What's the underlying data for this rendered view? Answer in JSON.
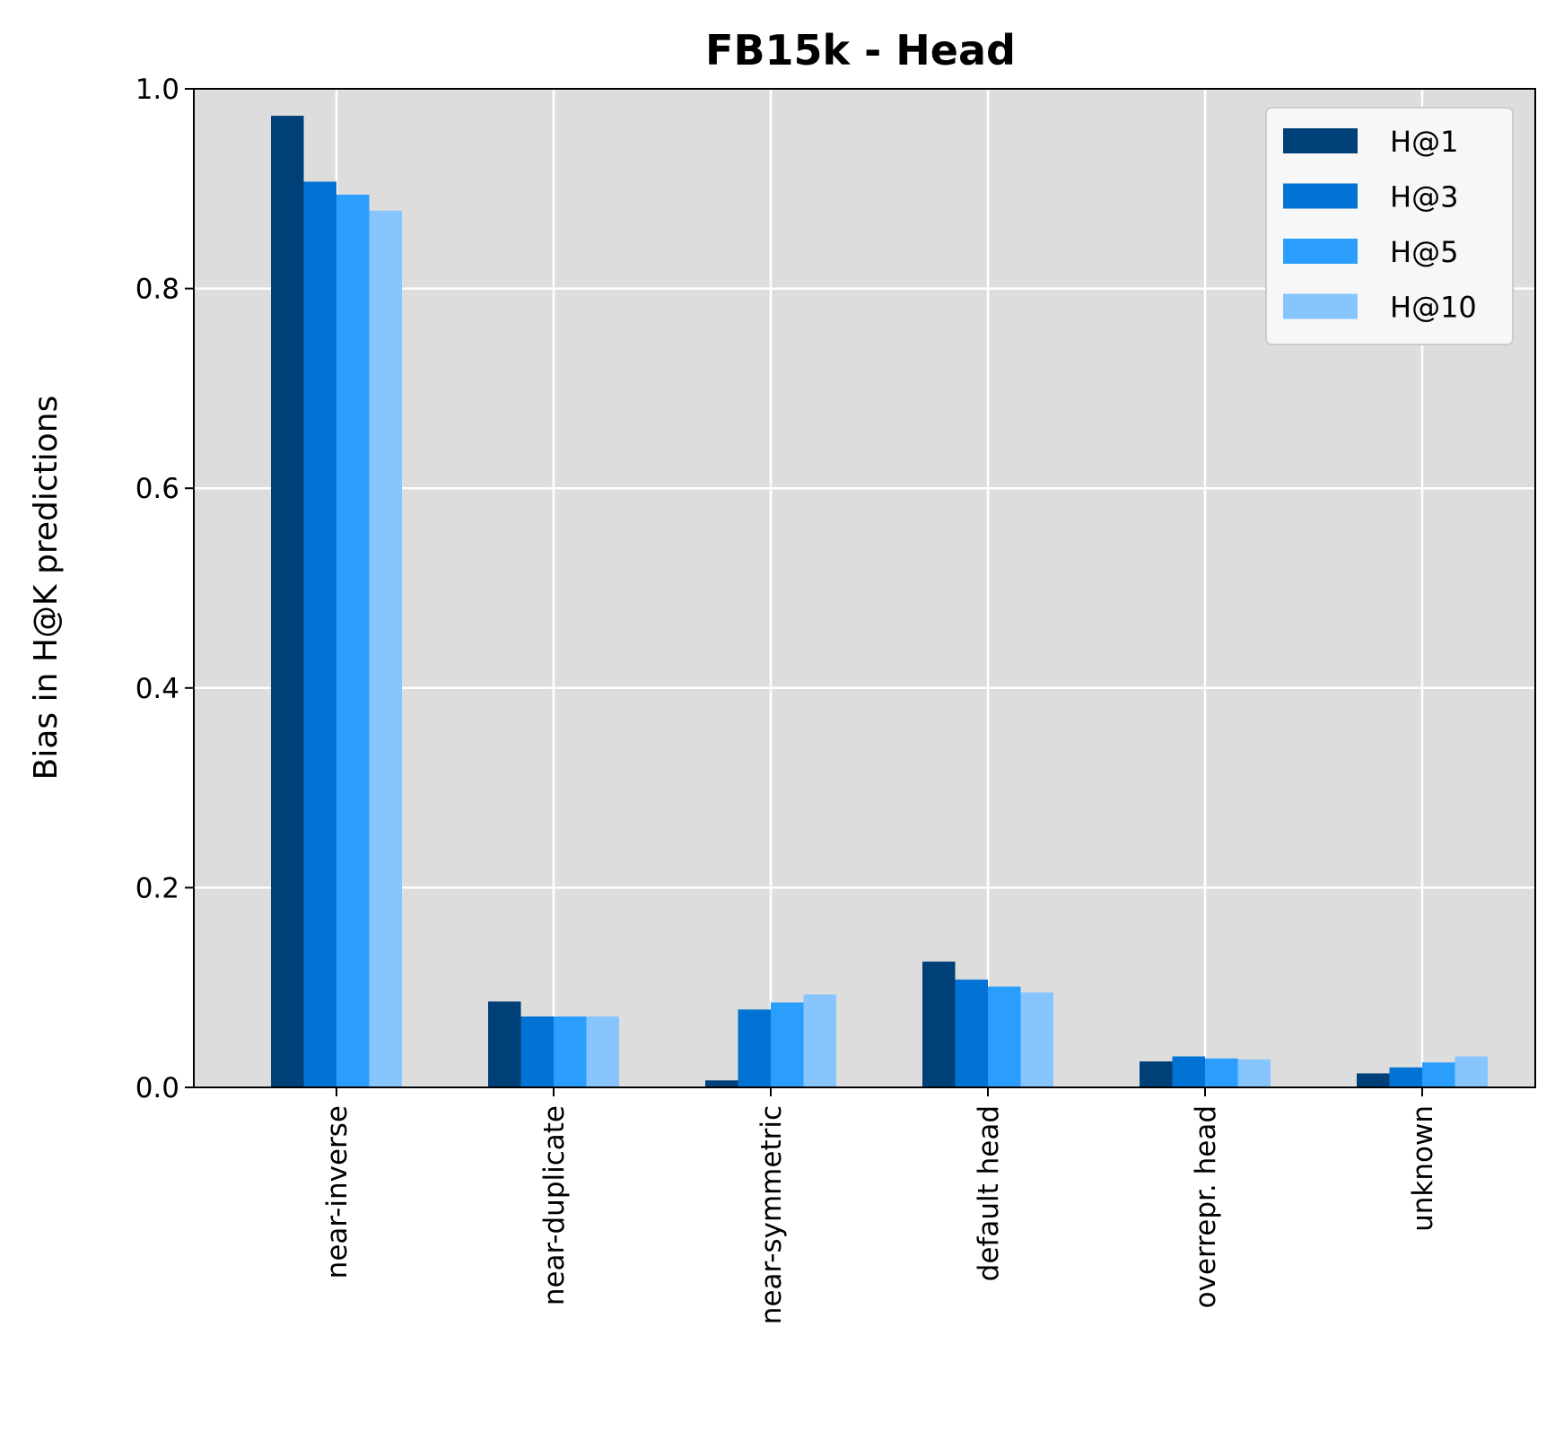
{
  "chart_data": {
    "type": "bar",
    "title": "FB15k - Head",
    "xlabel": "",
    "ylabel": "Bias in H@K predictions",
    "ylim": [
      0,
      1.0
    ],
    "yticks": [
      "0.0",
      "0.2",
      "0.4",
      "0.6",
      "0.8",
      "1.0"
    ],
    "grid": true,
    "legend_position": "top-right",
    "categories": [
      "near-inverse",
      "near-duplicate",
      "near-symmetric",
      "default head",
      "overrepr. head",
      "unknown"
    ],
    "series": [
      {
        "name": "H@1",
        "color": "#004079",
        "values": [
          0.973,
          0.086,
          0.007,
          0.126,
          0.026,
          0.014
        ]
      },
      {
        "name": "H@3",
        "color": "#0073d4",
        "values": [
          0.907,
          0.071,
          0.078,
          0.108,
          0.031,
          0.02
        ]
      },
      {
        "name": "H@5",
        "color": "#2b9efd",
        "values": [
          0.894,
          0.071,
          0.085,
          0.101,
          0.029,
          0.025
        ]
      },
      {
        "name": "H@10",
        "color": "#86c5fe",
        "values": [
          0.878,
          0.071,
          0.093,
          0.095,
          0.028,
          0.031
        ]
      }
    ]
  }
}
